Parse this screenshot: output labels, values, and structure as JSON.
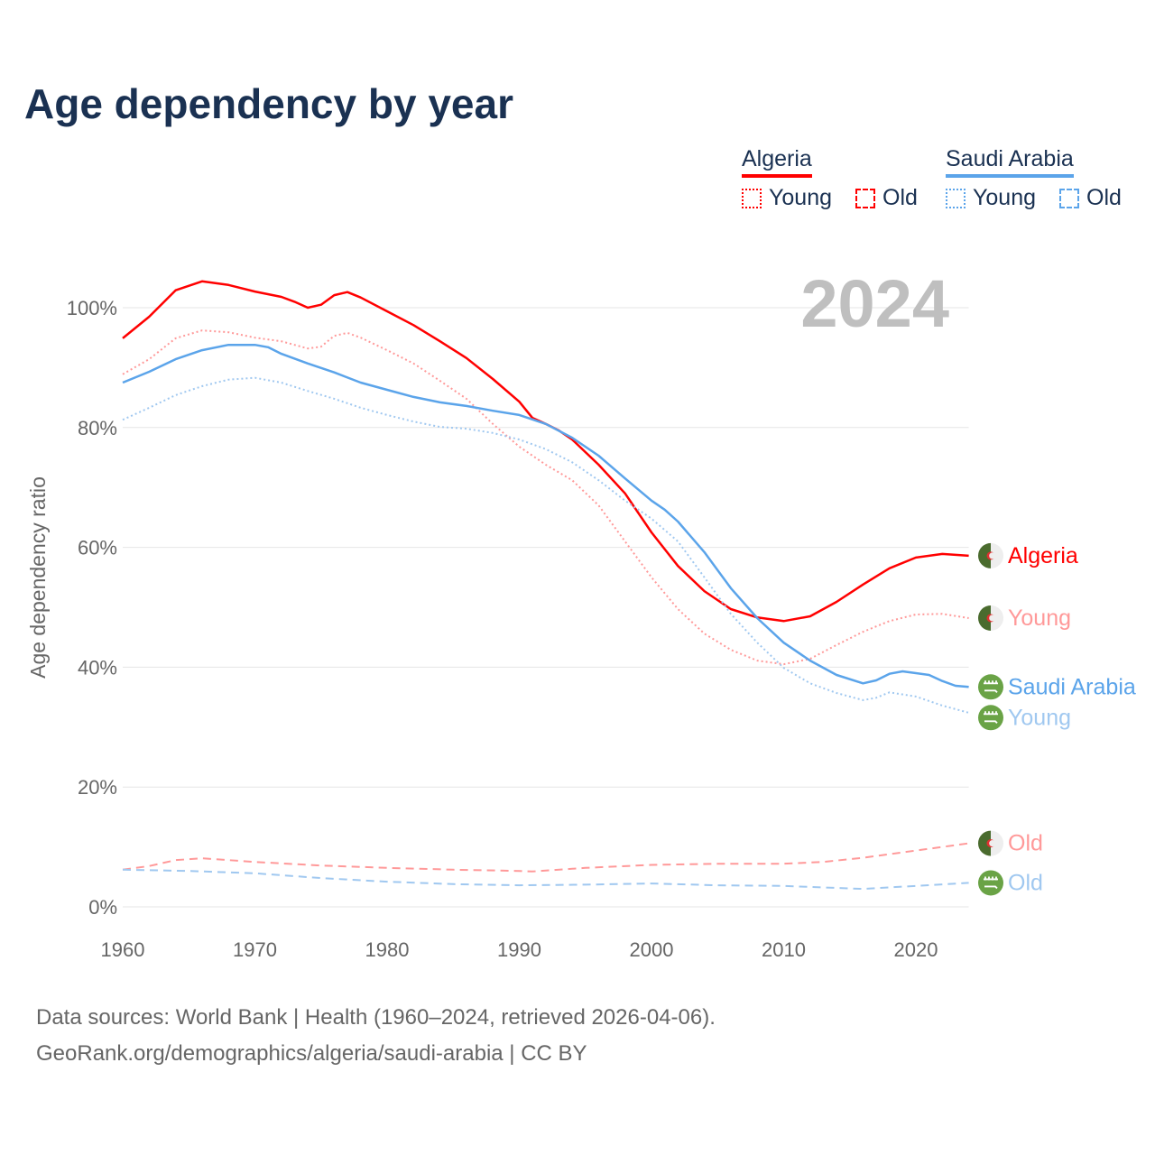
{
  "title": "Age dependency by year",
  "legend": {
    "groups": [
      {
        "country": "Algeria",
        "color": "#ff0000",
        "young_color": "#ff0000",
        "items": [
          "Young",
          "Old"
        ]
      },
      {
        "country": "Saudi Arabia",
        "color": "#5ba4ea",
        "young_color": "#5ba4ea",
        "items": [
          "Young",
          "Old"
        ]
      }
    ]
  },
  "footer": {
    "line1": "Data sources: World Bank | Health (1960–2024, retrieved 2026-04-06).",
    "line2": "GeoRank.org/demographics/algeria/saudi-arabia | CC BY"
  },
  "chart_data": {
    "type": "line",
    "title": "Age dependency by year",
    "year_label": "2024",
    "xlabel": "",
    "ylabel": "Age dependency ratio",
    "xlim": [
      1960,
      2024
    ],
    "ylim": [
      0,
      100
    ],
    "x_ticks": [
      "1960",
      "1970",
      "1980",
      "1990",
      "2000",
      "2010",
      "2020"
    ],
    "y_ticks": [
      "0%",
      "20%",
      "40%",
      "60%",
      "80%",
      "100%"
    ],
    "grid": true,
    "legend_position": "top-right",
    "series": [
      {
        "name": "Algeria",
        "label": "Algeria",
        "flag": "algeria",
        "color": "#ff0000",
        "style": "solid",
        "points": [
          [
            1960,
            94.9
          ],
          [
            1962,
            98.5
          ],
          [
            1964,
            102.9
          ],
          [
            1966,
            104.4
          ],
          [
            1968,
            103.8
          ],
          [
            1970,
            102.7
          ],
          [
            1972,
            101.8
          ],
          [
            1973,
            101
          ],
          [
            1974,
            100
          ],
          [
            1975,
            100.5
          ],
          [
            1976,
            102.1
          ],
          [
            1977,
            102.6
          ],
          [
            1978,
            101.7
          ],
          [
            1980,
            99.4
          ],
          [
            1982,
            97.1
          ],
          [
            1984,
            94.4
          ],
          [
            1986,
            91.6
          ],
          [
            1988,
            88.1
          ],
          [
            1990,
            84.3
          ],
          [
            1991,
            81.6
          ],
          [
            1992,
            80.6
          ],
          [
            1993,
            79.5
          ],
          [
            1994,
            78
          ],
          [
            1996,
            73.8
          ],
          [
            1998,
            69
          ],
          [
            2000,
            62.5
          ],
          [
            2002,
            56.9
          ],
          [
            2004,
            52.7
          ],
          [
            2006,
            49.7
          ],
          [
            2008,
            48.3
          ],
          [
            2010,
            47.7
          ],
          [
            2012,
            48.5
          ],
          [
            2014,
            50.9
          ],
          [
            2016,
            53.8
          ],
          [
            2018,
            56.5
          ],
          [
            2020,
            58.3
          ],
          [
            2022,
            58.9
          ],
          [
            2024,
            58.6
          ]
        ]
      },
      {
        "name": "Algeria Young",
        "label": "Young",
        "flag": "algeria",
        "color": "#ff9999",
        "style": "dotted",
        "points": [
          [
            1960,
            88.9
          ],
          [
            1962,
            91.4
          ],
          [
            1964,
            94.9
          ],
          [
            1966,
            96.2
          ],
          [
            1968,
            95.9
          ],
          [
            1970,
            95
          ],
          [
            1972,
            94.4
          ],
          [
            1974,
            93.2
          ],
          [
            1975,
            93.5
          ],
          [
            1976,
            95.3
          ],
          [
            1977,
            95.8
          ],
          [
            1978,
            95
          ],
          [
            1980,
            92.9
          ],
          [
            1982,
            90.7
          ],
          [
            1984,
            87.8
          ],
          [
            1986,
            84.8
          ],
          [
            1988,
            80.6
          ],
          [
            1990,
            76.8
          ],
          [
            1992,
            73.8
          ],
          [
            1994,
            71.2
          ],
          [
            1996,
            67
          ],
          [
            1998,
            61
          ],
          [
            2000,
            55
          ],
          [
            2002,
            49.7
          ],
          [
            2004,
            45.6
          ],
          [
            2006,
            42.9
          ],
          [
            2008,
            41.1
          ],
          [
            2010,
            40.5
          ],
          [
            2012,
            41.4
          ],
          [
            2014,
            43.7
          ],
          [
            2016,
            45.9
          ],
          [
            2018,
            47.7
          ],
          [
            2020,
            48.8
          ],
          [
            2022,
            48.9
          ],
          [
            2024,
            48.2
          ]
        ]
      },
      {
        "name": "Saudi Arabia",
        "label": "Saudi Arabia",
        "flag": "saudi",
        "color": "#5ba4ea",
        "style": "solid",
        "points": [
          [
            1960,
            87.5
          ],
          [
            1962,
            89.3
          ],
          [
            1964,
            91.4
          ],
          [
            1966,
            92.9
          ],
          [
            1968,
            93.8
          ],
          [
            1970,
            93.8
          ],
          [
            1971,
            93.4
          ],
          [
            1972,
            92.3
          ],
          [
            1974,
            90.7
          ],
          [
            1976,
            89.2
          ],
          [
            1978,
            87.5
          ],
          [
            1980,
            86.3
          ],
          [
            1982,
            85.1
          ],
          [
            1984,
            84.2
          ],
          [
            1986,
            83.6
          ],
          [
            1988,
            82.8
          ],
          [
            1990,
            82.1
          ],
          [
            1992,
            80.6
          ],
          [
            1994,
            78.3
          ],
          [
            1996,
            75.3
          ],
          [
            1998,
            71.5
          ],
          [
            2000,
            67.8
          ],
          [
            2001,
            66.3
          ],
          [
            2002,
            64.3
          ],
          [
            2004,
            59.2
          ],
          [
            2006,
            53.2
          ],
          [
            2008,
            48.2
          ],
          [
            2010,
            44.1
          ],
          [
            2012,
            41.1
          ],
          [
            2014,
            38.7
          ],
          [
            2016,
            37.3
          ],
          [
            2017,
            37.8
          ],
          [
            2018,
            38.9
          ],
          [
            2019,
            39.3
          ],
          [
            2020,
            39
          ],
          [
            2021,
            38.7
          ],
          [
            2022,
            37.7
          ],
          [
            2023,
            36.9
          ],
          [
            2024,
            36.7
          ]
        ]
      },
      {
        "name": "Saudi Arabia Young",
        "label": "Young",
        "flag": "saudi",
        "color": "#a0c8f0",
        "style": "dotted",
        "points": [
          [
            1960,
            81.3
          ],
          [
            1962,
            83.3
          ],
          [
            1964,
            85.4
          ],
          [
            1966,
            86.9
          ],
          [
            1968,
            88
          ],
          [
            1970,
            88.3
          ],
          [
            1972,
            87.5
          ],
          [
            1974,
            86.1
          ],
          [
            1976,
            84.8
          ],
          [
            1978,
            83.3
          ],
          [
            1980,
            82.1
          ],
          [
            1982,
            81
          ],
          [
            1984,
            80.1
          ],
          [
            1986,
            79.8
          ],
          [
            1988,
            79.1
          ],
          [
            1990,
            78
          ],
          [
            1992,
            76.4
          ],
          [
            1994,
            74.2
          ],
          [
            1996,
            71.2
          ],
          [
            1998,
            67.8
          ],
          [
            2000,
            64.8
          ],
          [
            2002,
            61
          ],
          [
            2004,
            55
          ],
          [
            2006,
            48.9
          ],
          [
            2008,
            44.1
          ],
          [
            2010,
            39.9
          ],
          [
            2012,
            37.3
          ],
          [
            2014,
            35.7
          ],
          [
            2016,
            34.5
          ],
          [
            2017,
            34.9
          ],
          [
            2018,
            35.8
          ],
          [
            2020,
            35.1
          ],
          [
            2022,
            33.6
          ],
          [
            2024,
            32.4
          ]
        ]
      },
      {
        "name": "Algeria Old",
        "label": "Old",
        "flag": "algeria",
        "color": "#ff9999",
        "style": "dashed",
        "points": [
          [
            1960,
            6.2
          ],
          [
            1962,
            6.8
          ],
          [
            1964,
            7.8
          ],
          [
            1966,
            8.1
          ],
          [
            1970,
            7.5
          ],
          [
            1975,
            6.9
          ],
          [
            1980,
            6.5
          ],
          [
            1985,
            6.2
          ],
          [
            1990,
            6.0
          ],
          [
            1991,
            5.9
          ],
          [
            1995,
            6.5
          ],
          [
            2000,
            7.0
          ],
          [
            2005,
            7.2
          ],
          [
            2010,
            7.2
          ],
          [
            2013,
            7.5
          ],
          [
            2016,
            8.2
          ],
          [
            2020,
            9.4
          ],
          [
            2024,
            10.6
          ]
        ]
      },
      {
        "name": "Saudi Arabia Old",
        "label": "Old",
        "flag": "saudi",
        "color": "#a0c8f0",
        "style": "dashed",
        "points": [
          [
            1960,
            6.2
          ],
          [
            1965,
            6.0
          ],
          [
            1970,
            5.6
          ],
          [
            1975,
            4.8
          ],
          [
            1980,
            4.2
          ],
          [
            1985,
            3.8
          ],
          [
            1990,
            3.6
          ],
          [
            1995,
            3.7
          ],
          [
            2000,
            3.9
          ],
          [
            2005,
            3.6
          ],
          [
            2010,
            3.5
          ],
          [
            2016,
            3.0
          ],
          [
            2020,
            3.5
          ],
          [
            2024,
            4.0
          ]
        ]
      }
    ]
  }
}
